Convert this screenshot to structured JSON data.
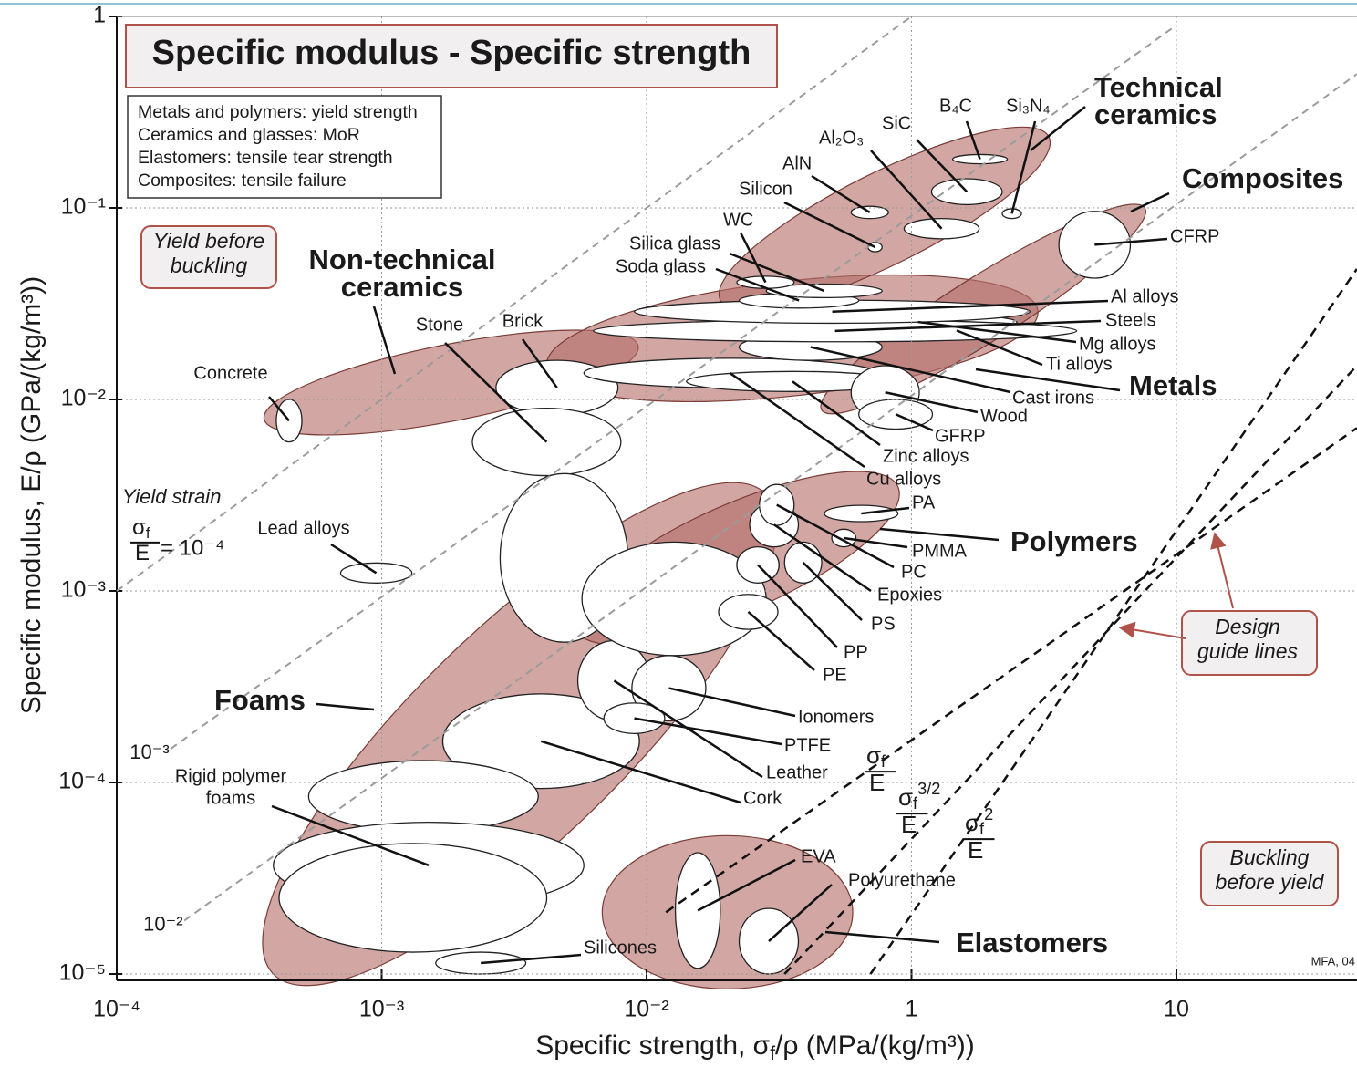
{
  "chart_data": {
    "type": "ashby",
    "title": "Specific modulus - Specific strength",
    "notes": [
      "Metals and polymers: yield strength",
      "Ceramics and glasses: MoR",
      "Elastomers: tensile tear strength",
      "Composites: tensile failure"
    ],
    "y_label": "Specific modulus, E/ρ (GPa/(kg/m³))",
    "x_label": [
      "Specific strength, σ",
      "f",
      "/ρ (MPa/(kg/m³))"
    ],
    "xscale": "log",
    "yscale": "log",
    "grid": true,
    "xlim": [
      0.0001,
      48
    ],
    "ylim": [
      1e-05,
      1
    ],
    "xticks": [
      {
        "value": 0.0001,
        "label": "10⁻⁴"
      },
      {
        "value": 0.001,
        "label": "10⁻³"
      },
      {
        "value": 0.01,
        "label": "10⁻²"
      },
      1,
      10
    ],
    "yticks": [
      {
        "value": 1e-05,
        "label": "10⁻⁵"
      },
      {
        "value": 0.0001,
        "label": "10⁻⁴"
      },
      {
        "value": 0.001,
        "label": "10⁻³"
      },
      {
        "value": 0.01,
        "label": "10⁻²"
      },
      {
        "value": 0.1,
        "label": "10⁻¹"
      },
      1
    ],
    "envelope_color": "#b5706a",
    "bubble_color": "#ffffff",
    "families": [
      {
        "name": [
          "Foams"
        ],
        "from": [
          0.00039,
          1e-05
        ],
        "to": [
          0.08,
          0.0032
        ],
        "half_width_decades": 0.55
      },
      {
        "name": [
          "Elastomers"
        ],
        "from": [
          0.0068,
          2.1e-05
        ],
        "to": [
          0.36,
          2.1e-05
        ],
        "half_width_decades": 0.4
      },
      {
        "name": [
          "Non-technical",
          "ceramics"
        ],
        "from": [
          0.00036,
          0.0079
        ],
        "to": [
          0.0093,
          0.019
        ],
        "half_width_decades": 0.2
      },
      {
        "name": [
          "Polymers"
        ],
        "from": [
          0.0054,
          0.00063
        ],
        "to": [
          0.79,
          0.0035
        ],
        "half_width_decades": 0.28
      },
      {
        "name": [
          "Metals"
        ],
        "from": [
          0.0042,
          0.015
        ],
        "to": [
          3.0,
          0.029
        ],
        "half_width_decades": 0.3
      },
      {
        "name": [
          "Composites"
        ],
        "from": [
          0.21,
          0.0088
        ],
        "to": [
          7.6,
          0.1
        ],
        "half_width_decades": 0.17
      },
      {
        "name": [
          "Technical",
          "ceramics"
        ],
        "from": [
          0.036,
          0.033
        ],
        "to": [
          3.3,
          0.235
        ],
        "half_width_decades": 0.24
      }
    ],
    "materials": [
      {
        "name": "Concrete",
        "x_range": [
          0.0004,
          0.0005
        ],
        "y_range": [
          0.006,
          0.01
        ]
      },
      {
        "name": "Lead alloys",
        "x_range": [
          0.0007,
          0.0013
        ],
        "y_range": [
          0.0011,
          0.0014
        ]
      },
      {
        "name": "Brick",
        "x_range": [
          0.0027,
          0.0078
        ],
        "y_range": [
          0.0083,
          0.016
        ]
      },
      {
        "name": "Stone",
        "x_range": [
          0.0022,
          0.008
        ],
        "y_range": [
          0.004,
          0.009
        ]
      },
      {
        "x_range": [
          0.0028,
          0.0085
        ],
        "y_range": [
          0.00054,
          0.0041
        ]
      },
      {
        "name": "Cork",
        "x_range": [
          0.0017,
          0.0094
        ],
        "y_range": [
          9.3e-05,
          0.00029
        ]
      },
      {
        "x_range": [
          0.00053,
          0.0039
        ],
        "y_range": [
          5.5e-05,
          0.00013
        ]
      },
      {
        "name": [
          "Rigid polymer",
          "foams"
        ],
        "x_range": [
          0.00039,
          0.0058
        ],
        "y_range": [
          2.2e-05,
          6.2e-05
        ]
      },
      {
        "x_range": [
          0.00041,
          0.0042
        ],
        "y_range": [
          1.3e-05,
          4.8e-05
        ]
      },
      {
        "name": "Silicones",
        "x_range": [
          0.0016,
          0.0035
        ],
        "y_range": [
          1e-05,
          1.3e-05
        ]
      },
      {
        "name": "Leather",
        "x_range": [
          0.0055,
          0.0107
        ],
        "y_range": [
          0.00021,
          0.00055
        ]
      },
      {
        "name": "Ionomers",
        "x_range": [
          0.0088,
          0.028
        ],
        "y_range": [
          0.00021,
          0.00046
        ]
      },
      {
        "name": "PTFE",
        "x_range": [
          0.0069,
          0.0137
        ],
        "y_range": [
          0.00018,
          0.00026
        ]
      },
      {
        "name": "EVA",
        "x_range": [
          0.0165,
          0.036
        ],
        "y_range": [
          1.07e-05,
          4.3e-05
        ]
      },
      {
        "name": "Polyurethane",
        "x_range": [
          0.05,
          0.14
        ],
        "y_range": [
          1e-05,
          2.2e-05
        ]
      },
      {
        "x_range": [
          0.0057,
          0.08
        ],
        "y_range": [
          0.00046,
          0.0018
        ]
      },
      {
        "name": "PE",
        "x_range": [
          0.035,
          0.098
        ],
        "y_range": [
          0.00063,
          0.00096
        ]
      },
      {
        "name": "PP",
        "x_range": [
          0.048,
          0.1
        ],
        "y_range": [
          0.0011,
          0.0017
        ]
      },
      {
        "name": "PS",
        "x_range": [
          0.11,
          0.21
        ],
        "y_range": [
          0.0011,
          0.0018
        ]
      },
      {
        "name": "Epoxies",
        "x_range": [
          0.06,
          0.14
        ],
        "y_range": [
          0.0017,
          0.0029
        ]
      },
      {
        "name": "PC",
        "x_range": [
          0.071,
          0.13
        ],
        "y_range": [
          0.0022,
          0.0036
        ]
      },
      {
        "name": "PMMA",
        "x_range": [
          0.25,
          0.38
        ],
        "y_range": [
          0.0017,
          0.0021
        ]
      },
      {
        "name": "PA",
        "x_range": [
          0.22,
          0.79
        ],
        "y_range": [
          0.0023,
          0.0028
        ]
      },
      {
        "name": "Cu alloys",
        "x_range": [
          0.0058,
          0.54
        ],
        "y_range": [
          0.0115,
          0.0164
        ]
      },
      {
        "name": "Zinc alloys",
        "x_range": [
          0.02,
          0.8
        ],
        "y_range": [
          0.011,
          0.014
        ]
      },
      {
        "name": "Cast irons",
        "x_range": [
          0.05,
          0.6
        ],
        "y_range": [
          0.016,
          0.022
        ]
      },
      {
        "name": "Wood",
        "x_range": [
          0.35,
          1.07
        ],
        "y_range": [
          0.0079,
          0.015
        ]
      },
      {
        "name": "GFRP",
        "x_range": [
          0.4,
          1.2
        ],
        "y_range": [
          0.007,
          0.01
        ]
      },
      {
        "name": "Ti alloys",
        "x_range": [
          0.3,
          4.0
        ],
        "y_range": [
          0.021,
          0.025
        ]
      },
      {
        "name": "Mg alloys",
        "x_range": [
          0.2,
          2.5
        ],
        "y_range": [
          0.023,
          0.028
        ]
      },
      {
        "name": "Steels",
        "x_range": [
          0.0063,
          4.2
        ],
        "y_range": [
          0.02,
          0.026
        ]
      },
      {
        "name": "Al alloys",
        "x_range": [
          0.009,
          2.8
        ],
        "y_range": [
          0.025,
          0.033
        ]
      },
      {
        "name": "Soda glass",
        "x_range": [
          0.05,
          0.4
        ],
        "y_range": [
          0.03,
          0.036
        ]
      },
      {
        "name": "Silica glass",
        "x_range": [
          0.08,
          0.6
        ],
        "y_range": [
          0.034,
          0.04
        ]
      },
      {
        "name": "WC",
        "x_range": [
          0.048,
          0.13
        ],
        "y_range": [
          0.038,
          0.044
        ]
      },
      {
        "name": "Silicon",
        "x_range": [
          0.47,
          0.6
        ],
        "y_range": [
          0.059,
          0.066
        ]
      },
      {
        "name": "AlN",
        "x_range": [
          0.35,
          0.67
        ],
        "y_range": [
          0.088,
          0.102
        ]
      },
      {
        "name": "Al₂O₃",
        "x_range": [
          0.88,
          1.8
        ],
        "y_range": [
          0.069,
          0.088
        ]
      },
      {
        "name": "SiC",
        "x_range": [
          1.19,
          2.2
        ],
        "y_range": [
          0.104,
          0.142
        ]
      },
      {
        "name": "B₄C",
        "x_range": [
          1.43,
          2.3
        ],
        "y_range": [
          0.17,
          0.19
        ]
      },
      {
        "name": "Si₃N₄",
        "x_range": [
          2.2,
          2.6
        ],
        "y_range": [
          0.088,
          0.099
        ]
      },
      {
        "name": "CFRP",
        "x_range": [
          3.6,
          6.7
        ],
        "y_range": [
          0.043,
          0.096
        ]
      }
    ],
    "yield_strain": {
      "title": "Yield strain",
      "symbol": "σ",
      "sub": "f",
      "den": "E",
      "eq": "= 10⁻⁴",
      "lines": [
        {
          "from": [
            0.0001,
            0.001
          ],
          "to": [
            1,
            1
          ]
        },
        {
          "label": "10⁻³",
          "from": [
            0.00016,
            0.00015
          ],
          "to": [
            10,
            0.9
          ]
        },
        {
          "label": "10⁻²",
          "from": [
            0.00018,
            1.9e-05
          ],
          "to": [
            48,
            0.5
          ]
        }
      ]
    },
    "design_guides": {
      "title": [
        "Design",
        "guide lines"
      ],
      "lines": [
        {
          "symbol": "σ",
          "sub": "f",
          "den": "E",
          "from": [
            0.014,
            2.1e-05
          ],
          "to": [
            48,
            0.0071
          ]
        },
        {
          "symbol": "σ",
          "sub": "f",
          "exp": "3/2",
          "den": "E",
          "from": [
            0.11,
            1e-05
          ],
          "to": [
            48,
            0.015
          ]
        },
        {
          "symbol": "σ",
          "sub": "f",
          "exp": "2",
          "den": "E",
          "from": [
            0.49,
            1e-05
          ],
          "to": [
            48,
            0.048
          ]
        }
      ]
    },
    "regions": [
      [
        "Yield before",
        "buckling"
      ],
      [
        "Buckling",
        "before yield"
      ]
    ],
    "credit": "MFA, 04"
  }
}
